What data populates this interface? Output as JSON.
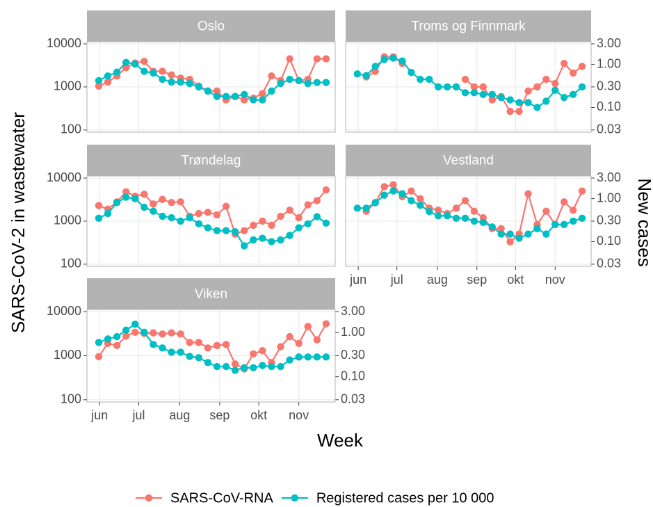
{
  "chart_data": {
    "type": "line",
    "x_label": "Week",
    "y_label": "SARS-CoV-2 in wastewater",
    "y2_label": "New cases",
    "log_y": true,
    "grid": true,
    "legend": "bottom",
    "series": [
      {
        "name": "SARS-CoV-RNA",
        "color": "#f8766d",
        "axis": "y"
      },
      {
        "name": "Registered cases per 10 000",
        "color": "#00bfc4",
        "axis": "y2"
      }
    ],
    "x": [
      22,
      23,
      24,
      25,
      26,
      27,
      28,
      29,
      30,
      31,
      32,
      33,
      34,
      35,
      36,
      37,
      38,
      39,
      40,
      41,
      42,
      43,
      44,
      45,
      46,
      47
    ],
    "xlim": [
      20.7,
      48.0
    ],
    "xticks": [
      {
        "value": 22.1,
        "label": "jun"
      },
      {
        "value": 26.4,
        "label": "jul"
      },
      {
        "value": 30.9,
        "label": "aug"
      },
      {
        "value": 35.3,
        "label": "sep"
      },
      {
        "value": 39.6,
        "label": "okt"
      },
      {
        "value": 44.0,
        "label": "nov"
      }
    ],
    "ylim": [
      89,
      11200
    ],
    "yticks": [
      100,
      1000,
      10000
    ],
    "y2lim": [
      0.0267,
      3.36
    ],
    "y2ticks": [
      {
        "value": 0.03,
        "label": "0.03"
      },
      {
        "value": 0.1,
        "label": "0.10"
      },
      {
        "value": 0.3,
        "label": "0.30"
      },
      {
        "value": 1,
        "label": "1.00"
      },
      {
        "value": 3,
        "label": "3.00"
      }
    ],
    "panels": [
      {
        "title": "Oslo",
        "series": [
          {
            "values": [
              1050,
              1300,
              1800,
              2800,
              3600,
              3900,
              2300,
              2300,
              1900,
              1600,
              1500,
              1050,
              800,
              800,
              500,
              600,
              500,
              550,
              700,
              1800,
              1400,
              4500,
              1400,
              1500,
              4500,
              4500
            ]
          },
          {
            "values": [
              0.42,
              0.54,
              0.66,
              1.11,
              1.02,
              0.69,
              0.63,
              0.45,
              0.39,
              0.39,
              0.36,
              0.3,
              0.24,
              0.18,
              0.18,
              0.18,
              0.2,
              0.15,
              0.15,
              0.24,
              0.36,
              0.45,
              0.42,
              0.36,
              0.38,
              0.38
            ]
          }
        ]
      },
      {
        "title": "Troms og Finnmark",
        "series": [
          {
            "values": [
              null,
              1700,
              2300,
              5000,
              5000,
              3500,
              null,
              null,
              null,
              null,
              null,
              null,
              1500,
              1000,
              1000,
              500,
              600,
              270,
              270,
              800,
              1000,
              1500,
              1200,
              3500,
              2100,
              3000
            ]
          },
          {
            "values": [
              0.6,
              0.55,
              0.9,
              1.3,
              1.4,
              1.2,
              0.65,
              0.45,
              0.45,
              0.3,
              0.3,
              0.3,
              0.22,
              0.22,
              0.2,
              0.2,
              0.17,
              0.15,
              0.13,
              0.13,
              0.1,
              0.14,
              0.25,
              0.17,
              0.2,
              0.3
            ]
          }
        ]
      },
      {
        "title": "Trøndelag",
        "series": [
          {
            "values": [
              2300,
              1900,
              2800,
              4800,
              3800,
              4200,
              2500,
              3200,
              2700,
              2800,
              1300,
              1500,
              1600,
              1400,
              2200,
              500,
              600,
              800,
              1000,
              800,
              1300,
              1800,
              1200,
              2400,
              3000,
              5300
            ]
          },
          {
            "values": [
              0.35,
              0.45,
              0.81,
              1.08,
              0.99,
              0.63,
              0.51,
              0.39,
              0.36,
              0.3,
              0.36,
              0.26,
              0.21,
              0.18,
              0.18,
              0.17,
              0.08,
              0.11,
              0.12,
              0.1,
              0.11,
              0.14,
              0.21,
              0.26,
              0.38,
              0.27
            ]
          }
        ]
      },
      {
        "title": "Vestland",
        "series": [
          {
            "values": [
              null,
              1700,
              2700,
              6300,
              7000,
              3700,
              5000,
              3300,
              2000,
              1800,
              1500,
              2000,
              3000,
              1700,
              1200,
              670,
              670,
              330,
              500,
              4300,
              830,
              1700,
              830,
              2800,
              1800,
              5000
            ]
          },
          {
            "values": [
              0.6,
              0.6,
              0.8,
              1.2,
              1.5,
              1.3,
              0.9,
              0.7,
              0.5,
              0.4,
              0.4,
              0.35,
              0.35,
              0.3,
              0.28,
              0.22,
              0.15,
              0.15,
              0.12,
              0.15,
              0.2,
              0.15,
              0.25,
              0.25,
              0.3,
              0.35
            ]
          }
        ]
      },
      {
        "title": "Viken",
        "series": [
          {
            "values": [
              950,
              1900,
              1700,
              2800,
              3400,
              3200,
              3300,
              3100,
              3300,
              3100,
              2000,
              2000,
              1500,
              1700,
              1800,
              650,
              500,
              1100,
              1300,
              700,
              1600,
              2700,
              1900,
              4600,
              2300,
              5300
            ]
          },
          {
            "values": [
              0.6,
              0.72,
              0.81,
              1.14,
              1.56,
              1.02,
              0.54,
              0.45,
              0.36,
              0.36,
              0.29,
              0.27,
              0.21,
              0.17,
              0.17,
              0.14,
              0.16,
              0.16,
              0.18,
              0.17,
              0.17,
              0.24,
              0.28,
              0.28,
              0.28,
              0.28
            ]
          }
        ]
      }
    ]
  }
}
